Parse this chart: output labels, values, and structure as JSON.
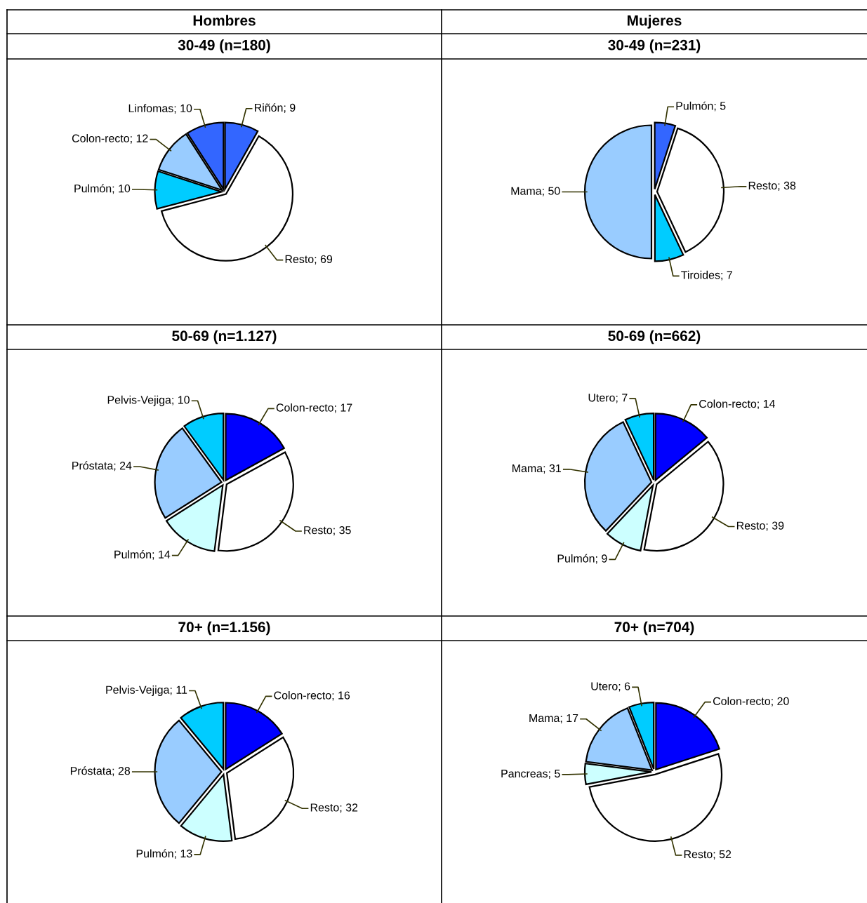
{
  "chart_data": [
    {
      "type": "pie",
      "title": "Hombres",
      "subtitle": "30-49 (n=180)",
      "categories": [
        "Riñón",
        "Resto",
        "Pulmón",
        "Colon-recto",
        "Linfomas"
      ],
      "values": [
        9,
        69,
        10,
        12,
        10
      ],
      "colors": [
        "#3366ff",
        "#ffffff",
        "#00ccff",
        "#99ccff",
        "#3366ff"
      ],
      "value_labels": [
        "; 9",
        "; 69",
        "; 10",
        "; 12",
        "; 10"
      ]
    },
    {
      "type": "pie",
      "title": "Mujeres",
      "subtitle": "30-49 (n=231)",
      "categories": [
        "Pulmón",
        "Resto",
        "Tiroides",
        "Mama"
      ],
      "values": [
        5,
        38,
        7,
        50
      ],
      "colors": [
        "#3366ff",
        "#ffffff",
        "#00ccff",
        "#99ccff"
      ],
      "value_labels": [
        "; 5",
        "; 38",
        "; 7",
        "; 50"
      ]
    },
    {
      "type": "pie",
      "title": "50-69 (n=1.127)",
      "categories": [
        "Colon-recto",
        "Resto",
        "Pulmón",
        "Próstata",
        "Pelvis-Vejiga"
      ],
      "values": [
        17,
        35,
        14,
        24,
        10
      ],
      "colors": [
        "#0000ff",
        "#ffffff",
        "#ccffff",
        "#99ccff",
        "#00ccff"
      ],
      "value_labels": [
        "; 17",
        "; 35",
        "; 14",
        "; 24",
        "; 10"
      ]
    },
    {
      "type": "pie",
      "title": "50-69 (n=662)",
      "categories": [
        "Colon-recto",
        "Resto",
        "Pulmón",
        "Mama",
        "Utero"
      ],
      "values": [
        14,
        39,
        9,
        31,
        7
      ],
      "colors": [
        "#0000ff",
        "#ffffff",
        "#ccffff",
        "#99ccff",
        "#00ccff"
      ],
      "value_labels": [
        "; 14",
        "; 39",
        "; 9",
        "; 31",
        "; 7"
      ]
    },
    {
      "type": "pie",
      "title": "70+ (n=1.156)",
      "categories": [
        "Colon-recto",
        "Resto",
        "Pulmón",
        "Próstata",
        "Pelvis-Vejiga"
      ],
      "values": [
        16,
        32,
        13,
        28,
        11
      ],
      "colors": [
        "#0000ff",
        "#ffffff",
        "#ccffff",
        "#99ccff",
        "#00ccff"
      ],
      "value_labels": [
        "; 16",
        "; 32",
        "; 13",
        "; 28",
        "; 11"
      ]
    },
    {
      "type": "pie",
      "title": "70+ (n=704)",
      "categories": [
        "Colon-recto",
        "Resto",
        "Pancreas",
        "Mama",
        "Utero"
      ],
      "values": [
        20,
        52,
        5,
        17,
        6
      ],
      "colors": [
        "#0000ff",
        "#ffffff",
        "#ccffff",
        "#99ccff",
        "#00ccff"
      ],
      "value_labels": [
        "; 20",
        "; 52",
        "; 5",
        "; 17",
        "; 6"
      ]
    }
  ]
}
